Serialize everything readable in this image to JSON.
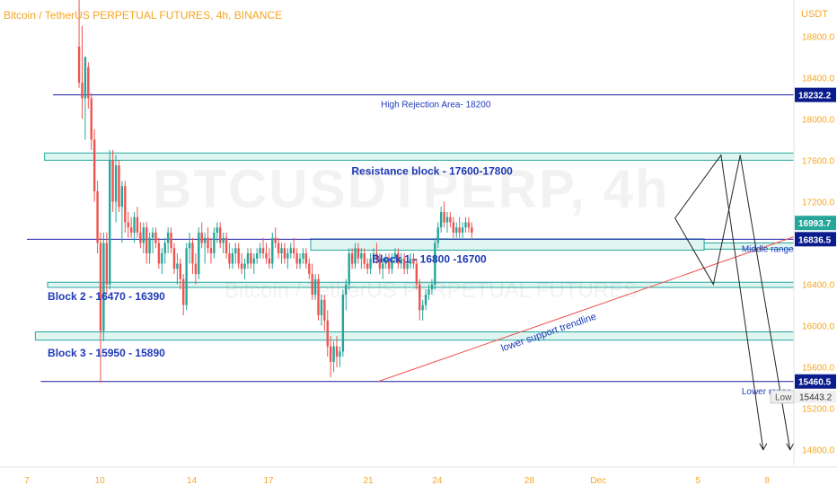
{
  "header": {
    "title": "Bitcoin / TetherUS PERPETUAL FUTURES, 4h, BINANCE",
    "unit": "USDT",
    "watermark": "BTCUSDTPERP, 4h",
    "watermark_sub": "Bitcoin / TetherUS PERPETUAL FUTURES"
  },
  "colors": {
    "up": "#26a69a",
    "down": "#ef5350",
    "level_line": "#1a1aa6",
    "zone_fill": "#d4f1ee",
    "zone_stroke": "#26a69a",
    "trendline": "#ef5350",
    "axis_text": "#f5a623",
    "annotation_text": "#1e3ab8",
    "projection": "#222222"
  },
  "chart_data": {
    "type": "candlestick",
    "title": "Bitcoin / TetherUS PERPETUAL FUTURES, 4h, BINANCE",
    "ylabel": "USDT",
    "ylim": [
      14650,
      19150
    ],
    "xlim": [
      0,
      100
    ],
    "y_ticks": [
      14800,
      15200,
      15600,
      16000,
      16400,
      16800,
      17200,
      17600,
      18000,
      18400,
      18800
    ],
    "x_ticks": [
      {
        "x": 0,
        "label": "7"
      },
      {
        "x": 9.5,
        "label": "10"
      },
      {
        "x": 21.5,
        "label": "14"
      },
      {
        "x": 31.5,
        "label": "17"
      },
      {
        "x": 44.5,
        "label": "21"
      },
      {
        "x": 53.5,
        "label": "24"
      },
      {
        "x": 65.5,
        "label": "28"
      },
      {
        "x": 74.5,
        "label": "Dec"
      },
      {
        "x": 87.5,
        "label": "5"
      },
      {
        "x": 96.5,
        "label": "8"
      }
    ],
    "grid": false,
    "price_levels": [
      {
        "value": 18232.2,
        "label": "18232.2",
        "style": "box"
      },
      {
        "value": 16993.7,
        "label": "16993.7",
        "style": "green"
      },
      {
        "value": 16836.5,
        "label": "16836.5",
        "style": "box"
      },
      {
        "value": 15460.5,
        "label": "15460.5",
        "style": "box"
      }
    ],
    "low_marker": {
      "label": "Low",
      "value": "15443.2"
    },
    "horizontal_lines": [
      {
        "value": 18232,
        "x_start": 3.4,
        "x_end": 100,
        "label": "High Rejection Area- 18200",
        "label_x": 52
      },
      {
        "value": 16836,
        "x_start": 0,
        "x_end": 100,
        "label": "Middle range",
        "label_x": 96
      },
      {
        "value": 15460,
        "x_start": 1.8,
        "x_end": 100,
        "label": "Lower range",
        "label_x": 96
      }
    ],
    "zones": [
      {
        "low": 17600,
        "high": 17670,
        "x_start": 2.3,
        "x_end": 100,
        "label": "Resistance block - 17600-17800",
        "label_x": 47,
        "label_y": 17460
      },
      {
        "low": 16730,
        "high": 16840,
        "x_start": 37,
        "x_end": 88.3,
        "label": "Block 1 - 16800 -16700",
        "label_x": 45,
        "label_y": 16610
      },
      {
        "low": 16740,
        "high": 16800,
        "x_start": 88.3,
        "x_end": 100,
        "label": "",
        "label_x": 0,
        "label_y": 0
      },
      {
        "low": 16370,
        "high": 16420,
        "x_start": 2.7,
        "x_end": 100,
        "label": "Block 2 - 16470 - 16390",
        "label_x": 2.7,
        "label_y": 16250
      },
      {
        "low": 15860,
        "high": 15940,
        "x_start": 1.1,
        "x_end": 100,
        "label": "Block 3 - 15950 - 15890",
        "label_x": 2.7,
        "label_y": 15700
      }
    ],
    "trendline": {
      "x1": 45.8,
      "y1": 15460,
      "x2": 100,
      "y2": 16860,
      "label": "lower support trendline",
      "label_x": 62,
      "label_y": 15750
    },
    "projections": [
      {
        "points": [
          [
            84.5,
            17040
          ],
          [
            89.5,
            16400
          ],
          [
            93,
            17650
          ]
        ]
      },
      {
        "points": [
          [
            84.5,
            17040
          ],
          [
            90.5,
            17650
          ],
          [
            96,
            14800
          ]
        ]
      },
      {
        "points": [
          [
            93,
            17650
          ],
          [
            99.5,
            14800
          ]
        ]
      }
    ],
    "candles": [
      [
        6.8,
        18700,
        19300,
        18300,
        18350
      ],
      [
        7.2,
        18350,
        18900,
        18000,
        18200
      ],
      [
        7.6,
        18200,
        18600,
        17800,
        18600
      ],
      [
        8.0,
        18500,
        18550,
        18100,
        18200
      ],
      [
        8.4,
        18200,
        18250,
        17700,
        17800
      ],
      [
        8.8,
        17800,
        17900,
        17200,
        17300
      ],
      [
        9.2,
        17300,
        17400,
        16700,
        16800
      ],
      [
        9.6,
        16800,
        16900,
        15450,
        15950
      ],
      [
        10.0,
        15950,
        16900,
        15850,
        16800
      ],
      [
        10.4,
        16800,
        16900,
        16300,
        16400
      ],
      [
        10.8,
        16400,
        17700,
        16350,
        17600
      ],
      [
        11.2,
        17600,
        17700,
        17100,
        17200
      ],
      [
        11.6,
        17200,
        17650,
        17000,
        17550
      ],
      [
        12.0,
        17550,
        17600,
        17100,
        17150
      ],
      [
        12.4,
        17150,
        17400,
        16800,
        17350
      ],
      [
        12.8,
        17350,
        17400,
        16900,
        17000
      ],
      [
        13.2,
        17000,
        17100,
        16850,
        16950
      ],
      [
        13.6,
        16950,
        17050,
        16850,
        16900
      ],
      [
        14.0,
        16900,
        17100,
        16800,
        17050
      ],
      [
        14.4,
        17050,
        17150,
        16850,
        16900
      ],
      [
        14.8,
        16900,
        17000,
        16750,
        16800
      ],
      [
        15.2,
        16800,
        17000,
        16700,
        16950
      ],
      [
        15.6,
        16950,
        17000,
        16600,
        16700
      ],
      [
        16.0,
        16700,
        16900,
        16600,
        16850
      ],
      [
        16.4,
        16850,
        16950,
        16700,
        16900
      ],
      [
        16.8,
        16900,
        16950,
        16750,
        16800
      ],
      [
        17.2,
        16800,
        16850,
        16550,
        16600
      ],
      [
        17.6,
        16600,
        16750,
        16500,
        16700
      ],
      [
        18.0,
        16700,
        16850,
        16600,
        16800
      ],
      [
        18.4,
        16800,
        16950,
        16700,
        16900
      ],
      [
        18.8,
        16900,
        16950,
        16700,
        16750
      ],
      [
        19.2,
        16750,
        16800,
        16500,
        16550
      ],
      [
        19.6,
        16550,
        16700,
        16400,
        16600
      ],
      [
        20.0,
        16600,
        16650,
        16350,
        16450
      ],
      [
        20.4,
        16450,
        16500,
        16100,
        16200
      ],
      [
        20.8,
        16200,
        16800,
        16150,
        16750
      ],
      [
        21.2,
        16750,
        16900,
        16600,
        16800
      ],
      [
        21.6,
        16800,
        16850,
        16500,
        16600
      ],
      [
        22.0,
        16600,
        16700,
        16400,
        16500
      ],
      [
        22.4,
        16500,
        16950,
        16450,
        16900
      ],
      [
        22.8,
        16900,
        17000,
        16750,
        16800
      ],
      [
        23.2,
        16800,
        16900,
        16600,
        16850
      ],
      [
        23.6,
        16850,
        16950,
        16700,
        16750
      ],
      [
        24.0,
        16750,
        16850,
        16600,
        16700
      ],
      [
        24.4,
        16700,
        16950,
        16650,
        16900
      ],
      [
        24.8,
        16900,
        17000,
        16800,
        16950
      ],
      [
        25.2,
        16950,
        17000,
        16750,
        16800
      ],
      [
        25.6,
        16800,
        16900,
        16700,
        16850
      ],
      [
        26.0,
        16850,
        16900,
        16650,
        16700
      ],
      [
        26.4,
        16700,
        16800,
        16550,
        16600
      ],
      [
        26.8,
        16600,
        16750,
        16550,
        16700
      ],
      [
        27.2,
        16700,
        16800,
        16600,
        16750
      ],
      [
        27.6,
        16750,
        16800,
        16550,
        16600
      ],
      [
        28.0,
        16600,
        16700,
        16500,
        16550
      ],
      [
        28.4,
        16550,
        16650,
        16450,
        16600
      ],
      [
        28.8,
        16600,
        16750,
        16550,
        16700
      ],
      [
        29.2,
        16700,
        16750,
        16550,
        16600
      ],
      [
        29.6,
        16600,
        16700,
        16500,
        16650
      ],
      [
        30.0,
        16650,
        16750,
        16600,
        16700
      ],
      [
        30.4,
        16700,
        16800,
        16650,
        16750
      ],
      [
        30.8,
        16750,
        16850,
        16650,
        16700
      ],
      [
        31.2,
        16700,
        16800,
        16600,
        16650
      ],
      [
        31.6,
        16650,
        16750,
        16550,
        16600
      ],
      [
        32.0,
        16600,
        16900,
        16550,
        16850
      ],
      [
        32.4,
        16850,
        16950,
        16750,
        16800
      ],
      [
        32.8,
        16800,
        16850,
        16650,
        16700
      ],
      [
        33.2,
        16700,
        16800,
        16600,
        16750
      ],
      [
        33.6,
        16750,
        16800,
        16600,
        16650
      ],
      [
        34.0,
        16650,
        16750,
        16550,
        16700
      ],
      [
        34.4,
        16700,
        16800,
        16650,
        16750
      ],
      [
        34.8,
        16750,
        16850,
        16650,
        16700
      ],
      [
        35.2,
        16700,
        16750,
        16550,
        16600
      ],
      [
        35.6,
        16600,
        16700,
        16550,
        16650
      ],
      [
        36.0,
        16650,
        16750,
        16600,
        16700
      ],
      [
        36.4,
        16700,
        16750,
        16550,
        16600
      ],
      [
        36.8,
        16600,
        16650,
        16450,
        16500
      ],
      [
        37.2,
        16500,
        16600,
        16250,
        16300
      ],
      [
        37.6,
        16300,
        16500,
        16250,
        16450
      ],
      [
        38.0,
        16450,
        16500,
        16050,
        16100
      ],
      [
        38.4,
        16100,
        16300,
        16000,
        16250
      ],
      [
        38.8,
        16250,
        16300,
        15950,
        16050
      ],
      [
        39.2,
        16050,
        16150,
        15700,
        15800
      ],
      [
        39.6,
        15800,
        15900,
        15500,
        15650
      ],
      [
        40.0,
        15650,
        15850,
        15550,
        15800
      ],
      [
        40.4,
        15800,
        15900,
        15600,
        15700
      ],
      [
        40.8,
        15700,
        15800,
        15600,
        15750
      ],
      [
        41.2,
        15750,
        16350,
        15700,
        16300
      ],
      [
        41.6,
        16300,
        16450,
        16150,
        16400
      ],
      [
        42.0,
        16400,
        16750,
        16350,
        16700
      ],
      [
        42.4,
        16700,
        16750,
        16550,
        16600
      ],
      [
        42.8,
        16600,
        16800,
        16550,
        16750
      ],
      [
        43.2,
        16750,
        16800,
        16600,
        16650
      ],
      [
        43.6,
        16650,
        16750,
        16550,
        16700
      ],
      [
        44.0,
        16700,
        16750,
        16550,
        16600
      ],
      [
        44.4,
        16600,
        16650,
        16500,
        16550
      ],
      [
        44.8,
        16550,
        16700,
        16500,
        16650
      ],
      [
        45.2,
        16650,
        16750,
        16600,
        16700
      ],
      [
        45.6,
        16700,
        16800,
        16600,
        16650
      ],
      [
        46.0,
        16650,
        16700,
        16500,
        16550
      ],
      [
        46.4,
        16550,
        16650,
        16450,
        16600
      ],
      [
        46.8,
        16600,
        16700,
        16550,
        16650
      ],
      [
        47.2,
        16650,
        16700,
        16500,
        16550
      ],
      [
        47.6,
        16550,
        16700,
        16500,
        16650
      ],
      [
        48.0,
        16650,
        16750,
        16600,
        16700
      ],
      [
        48.4,
        16700,
        16750,
        16550,
        16600
      ],
      [
        48.8,
        16600,
        16700,
        16550,
        16650
      ],
      [
        49.2,
        16650,
        16700,
        16500,
        16550
      ],
      [
        49.6,
        16550,
        16650,
        16500,
        16600
      ],
      [
        50.0,
        16600,
        16700,
        16550,
        16650
      ],
      [
        50.4,
        16650,
        16700,
        16550,
        16600
      ],
      [
        50.8,
        16600,
        16650,
        16350,
        16400
      ],
      [
        51.2,
        16400,
        16450,
        16050,
        16150
      ],
      [
        51.6,
        16150,
        16250,
        16050,
        16200
      ],
      [
        52.0,
        16200,
        16350,
        16150,
        16300
      ],
      [
        52.4,
        16300,
        16400,
        16250,
        16350
      ],
      [
        52.8,
        16350,
        16450,
        16300,
        16400
      ],
      [
        53.2,
        16400,
        16850,
        16350,
        16800
      ],
      [
        53.6,
        16800,
        17000,
        16750,
        16950
      ],
      [
        54.0,
        16950,
        17150,
        16900,
        17100
      ],
      [
        54.4,
        17100,
        17200,
        16950,
        17000
      ],
      [
        54.8,
        17000,
        17100,
        16900,
        17050
      ],
      [
        55.2,
        17050,
        17100,
        16950,
        17000
      ],
      [
        55.6,
        17000,
        17050,
        16850,
        16900
      ],
      [
        56.0,
        16900,
        17000,
        16850,
        16950
      ],
      [
        56.4,
        16950,
        17050,
        16850,
        16900
      ],
      [
        56.8,
        16900,
        17000,
        16850,
        16950
      ],
      [
        57.2,
        16950,
        17050,
        16900,
        17000
      ],
      [
        57.6,
        17000,
        17050,
        16900,
        16950
      ],
      [
        58.0,
        16950,
        17000,
        16850,
        16900
      ]
    ]
  }
}
